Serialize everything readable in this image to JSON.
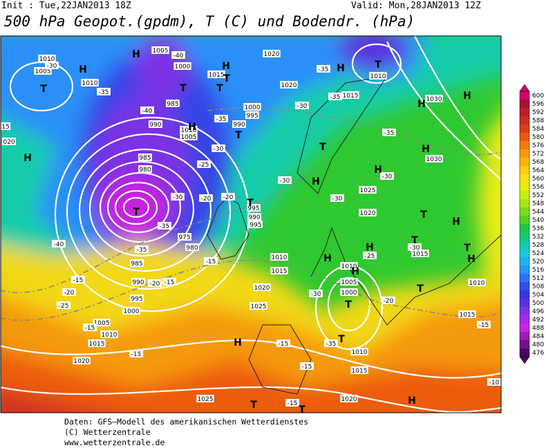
{
  "header": {
    "init": "Init : Tue,22JAN2013 18Z",
    "valid": "Valid: Mon,28JAN2013 12Z",
    "title": "500 hPa Geopot.(gpdm), T (C) und Bodendr. (hPa)"
  },
  "map": {
    "isobar_labels": [
      "1010",
      "1005",
      "1010",
      "1005",
      "1000",
      "1015",
      "1020",
      "1020",
      "1000",
      "995",
      "990",
      "985",
      "990",
      "1010",
      "1005",
      "985",
      "980",
      "975",
      "980",
      "985",
      "990",
      "995",
      "1000",
      "1005",
      "1010",
      "1015",
      "1020",
      "1025",
      "1020",
      "1015",
      "1010",
      "1005",
      "1000",
      "1010",
      "1015",
      "1020",
      "1025",
      "1010",
      "1015",
      "1010",
      "1015",
      "1020",
      "1025",
      "1030",
      "1030",
      "1015",
      "1010",
      "995",
      "990",
      "995"
    ],
    "temperature_labels": [
      "-30",
      "-35",
      "-40",
      "-35",
      "-30",
      "-25",
      "-30",
      "-20",
      "-20",
      "-35",
      "-35",
      "-40",
      "-30",
      "-35",
      "-35",
      "-35",
      "-30",
      "-30",
      "-25",
      "-30",
      "-20",
      "-15",
      "-15",
      "-20",
      "-15",
      "-20",
      "-25",
      "-15",
      "-15",
      "-15",
      "-15",
      "-15",
      "-10",
      "-15",
      "-35",
      "-30",
      "-40",
      "-30",
      "15",
      "020"
    ],
    "pressure_centers": [
      "H",
      "H",
      "T",
      "H",
      "T",
      "T",
      "T",
      "H",
      "T",
      "H",
      "T",
      "T",
      "T",
      "H",
      "H",
      "H",
      "H",
      "H",
      "H",
      "T",
      "T",
      "H",
      "H",
      "H",
      "T",
      "T",
      "H",
      "H",
      "T",
      "T",
      "H",
      "T",
      "T",
      "H",
      "T"
    ]
  },
  "colorbar": {
    "values": [
      600,
      596,
      592,
      588,
      584,
      580,
      576,
      572,
      568,
      564,
      560,
      556,
      552,
      548,
      544,
      540,
      536,
      532,
      528,
      524,
      520,
      516,
      512,
      508,
      504,
      500,
      496,
      492,
      488,
      484,
      480,
      476
    ],
    "colors": [
      "#d6006e",
      "#a0142a",
      "#b8202a",
      "#cc2e22",
      "#dd3e18",
      "#ec5a10",
      "#f27a0a",
      "#f79a08",
      "#fab40a",
      "#fccc10",
      "#f8e018",
      "#e4ec10",
      "#c8ee10",
      "#a8e618",
      "#7cdc20",
      "#4cd228",
      "#22c83c",
      "#18c870",
      "#14cca8",
      "#16ccd8",
      "#1eb4f0",
      "#2896f8",
      "#2c74f4",
      "#3050e8",
      "#3838e0",
      "#5a30e0",
      "#8230e4",
      "#a828e8",
      "#c824e0",
      "#a01cb4",
      "#72128a",
      "#4a0a60"
    ]
  },
  "footer": {
    "lines": [
      "Daten: GFS–Modell des amerikanischen Wetterdienstes",
      "(C) Wetterzentrale",
      "www.wetterzentrale.de"
    ]
  }
}
